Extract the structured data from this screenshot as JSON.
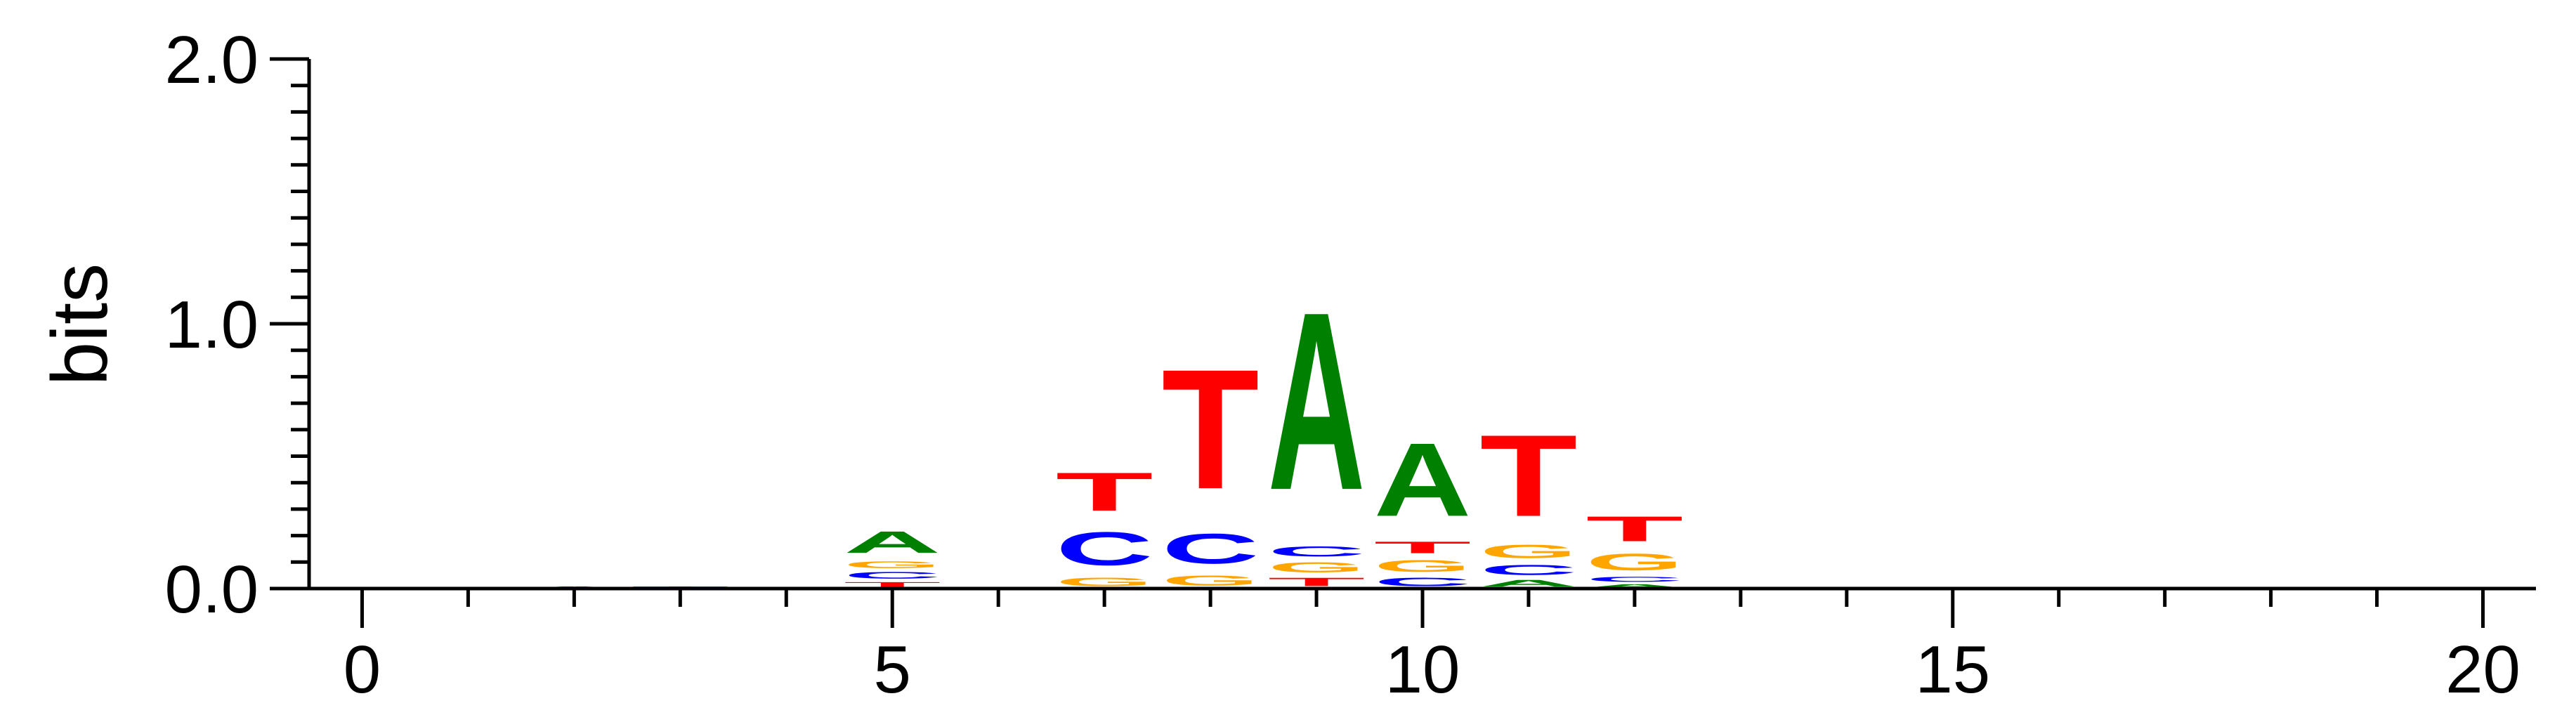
{
  "chart_data": {
    "type": "sequence-logo",
    "title": "",
    "xlabel": "",
    "ylabel": "bits",
    "xlim": [
      -0.5,
      20.5
    ],
    "ylim": [
      0,
      2.0
    ],
    "x_ticks": [
      "0",
      "5",
      "10",
      "15",
      "20"
    ],
    "y_ticks": [
      "0.0",
      "1.0",
      "2.0"
    ],
    "grid": false,
    "colors": {
      "A": "#008000",
      "C": "#0000ff",
      "G": "#ffa500",
      "T": "#ff0000"
    },
    "positions": [
      {
        "pos": 2,
        "stack": [
          {
            "letter": "A",
            "bits": 0.01
          }
        ]
      },
      {
        "pos": 3,
        "stack": [
          {
            "letter": "T",
            "bits": 0.01
          }
        ]
      },
      {
        "pos": 5,
        "stack": [
          {
            "letter": "T",
            "bits": 0.03
          },
          {
            "letter": "C",
            "bits": 0.04
          },
          {
            "letter": "G",
            "bits": 0.04
          },
          {
            "letter": "A",
            "bits": 0.13
          }
        ]
      },
      {
        "pos": 7,
        "stack": [
          {
            "letter": "G",
            "bits": 0.05
          },
          {
            "letter": "C",
            "bits": 0.2
          },
          {
            "letter": "T",
            "bits": 0.23
          }
        ]
      },
      {
        "pos": 8,
        "stack": [
          {
            "letter": "G",
            "bits": 0.06
          },
          {
            "letter": "C",
            "bits": 0.18
          },
          {
            "letter": "T",
            "bits": 0.72
          }
        ]
      },
      {
        "pos": 9,
        "stack": [
          {
            "letter": "T",
            "bits": 0.05
          },
          {
            "letter": "G",
            "bits": 0.06
          },
          {
            "letter": "C",
            "bits": 0.06
          },
          {
            "letter": "A",
            "bits": 1.07
          }
        ]
      },
      {
        "pos": 10,
        "stack": [
          {
            "letter": "C",
            "bits": 0.05
          },
          {
            "letter": "G",
            "bits": 0.07
          },
          {
            "letter": "T",
            "bits": 0.07
          },
          {
            "letter": "A",
            "bits": 0.44
          }
        ]
      },
      {
        "pos": 11,
        "stack": [
          {
            "letter": "A",
            "bits": 0.04
          },
          {
            "letter": "C",
            "bits": 0.06
          },
          {
            "letter": "G",
            "bits": 0.08
          },
          {
            "letter": "T",
            "bits": 0.49
          }
        ]
      },
      {
        "pos": 12,
        "stack": [
          {
            "letter": "A",
            "bits": 0.02
          },
          {
            "letter": "C",
            "bits": 0.03
          },
          {
            "letter": "G",
            "bits": 0.1
          },
          {
            "letter": "T",
            "bits": 0.15
          }
        ]
      }
    ]
  }
}
